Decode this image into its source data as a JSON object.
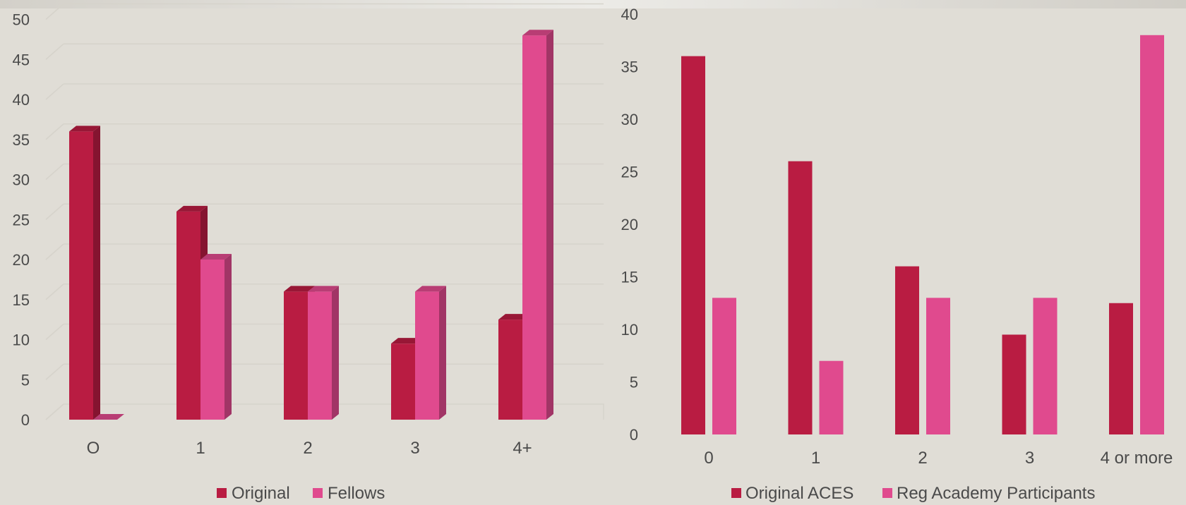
{
  "colors": {
    "background": "#e0ddd6",
    "series_dark": "#b91c42",
    "series_pink": "#e04a8e",
    "grid": "#d6d3cb",
    "text": "#4a4a4a"
  },
  "chart_data": [
    {
      "type": "bar",
      "style": "3d-clustered-column",
      "categories": [
        "O",
        "1",
        "2",
        "3",
        "4+"
      ],
      "series": [
        {
          "name": "Original",
          "values": [
            36,
            26,
            16,
            9.5,
            12.5
          ]
        },
        {
          "name": "Fellows",
          "values": [
            0,
            20,
            16,
            16,
            48
          ]
        }
      ],
      "yticks": [
        "0",
        "5",
        "10",
        "15",
        "20",
        "25",
        "30",
        "35",
        "40",
        "45",
        "50"
      ],
      "ylim": [
        0,
        50
      ],
      "grid": true,
      "legend": "bottom"
    },
    {
      "type": "bar",
      "style": "clustered-column",
      "categories": [
        "0",
        "1",
        "2",
        "3",
        "4 or more"
      ],
      "series": [
        {
          "name": "Original ACES",
          "values": [
            36,
            26,
            16,
            9.5,
            12.5
          ]
        },
        {
          "name": "Reg Academy Participants",
          "values": [
            13,
            7,
            13,
            13,
            38
          ]
        }
      ],
      "yticks": [
        "0",
        "5",
        "10",
        "15",
        "20",
        "25",
        "30",
        "35",
        "40"
      ],
      "ylim": [
        0,
        40
      ],
      "grid": false,
      "legend": "bottom"
    }
  ]
}
